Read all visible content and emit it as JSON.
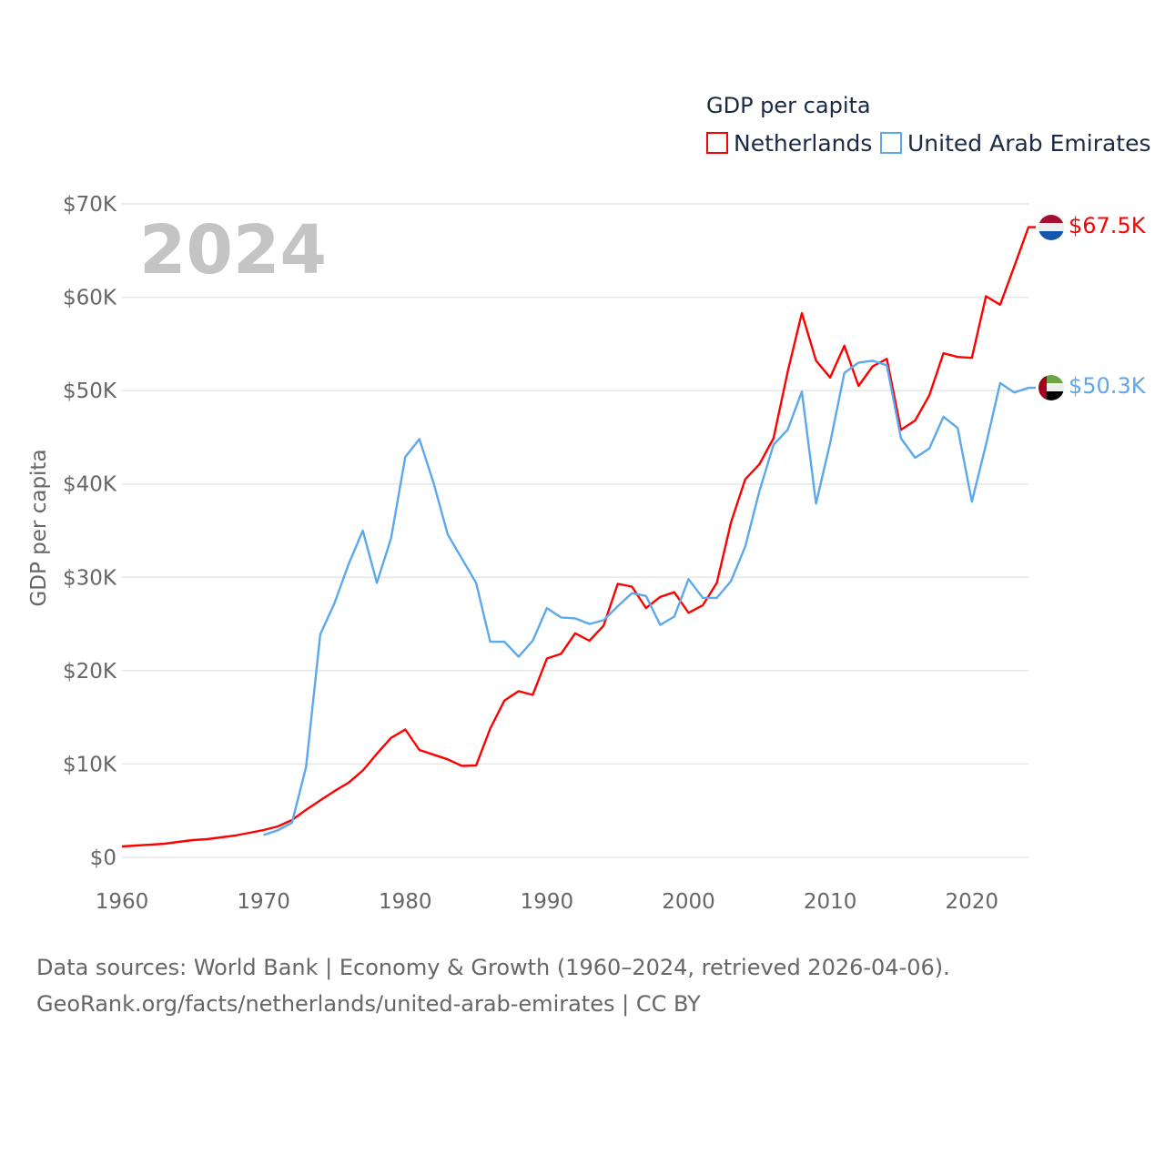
{
  "chart_data": {
    "type": "line",
    "title": "GDP per capita",
    "ylabel": "GDP per capita",
    "xlabel": "",
    "xlim": [
      1960,
      2024
    ],
    "ylim": [
      0,
      70000
    ],
    "x_ticks": [
      1960,
      1970,
      1980,
      1990,
      2000,
      2010,
      2020
    ],
    "x_tick_labels": [
      "1960",
      "1970",
      "1980",
      "1990",
      "2000",
      "2010",
      "2020"
    ],
    "y_ticks": [
      0,
      10000,
      20000,
      30000,
      40000,
      50000,
      60000,
      70000
    ],
    "y_tick_labels": [
      "$0",
      "$10K",
      "$20K",
      "$30K",
      "$40K",
      "$50K",
      "$60K",
      "$70K"
    ],
    "grid": true,
    "legend_position": "top-right",
    "year_annotation": "2024",
    "series": [
      {
        "name": "Netherlands",
        "color": "#ff0000",
        "end_label": "$67.5K",
        "flag": "netherlands-flag",
        "start_year": 1960,
        "values": [
          1170,
          1270,
          1360,
          1460,
          1660,
          1850,
          1950,
          2140,
          2340,
          2630,
          2920,
          3310,
          4000,
          5100,
          6100,
          7100,
          8000,
          9300,
          11100,
          12800,
          13700,
          11500,
          11000,
          10500,
          9800,
          9840,
          13800,
          16800,
          17800,
          17400,
          21300,
          21800,
          24000,
          23200,
          24800,
          29300,
          29000,
          26700,
          27900,
          28400,
          26200,
          27000,
          29400,
          35900,
          40500,
          42100,
          44900,
          52000,
          58300,
          53200,
          51400,
          54800,
          50500,
          52600,
          53400,
          45800,
          46800,
          49500,
          54000,
          53600,
          53500,
          60100,
          59200,
          63300,
          67500
        ]
      },
      {
        "name": "United Arab Emirates",
        "color": "#5ca8ec",
        "end_label": "$50.3K",
        "flag": "uae-flag",
        "start_year": 1970,
        "values": [
          2400,
          2900,
          3700,
          9700,
          23900,
          27200,
          31400,
          35000,
          29400,
          34200,
          42900,
          44800,
          40100,
          34600,
          32000,
          29400,
          23100,
          23100,
          21500,
          23200,
          26700,
          25700,
          25600,
          25000,
          25400,
          26900,
          28300,
          28000,
          24900,
          25800,
          29800,
          27800,
          27800,
          29600,
          33300,
          39200,
          44200,
          45800,
          49900,
          37900,
          44400,
          51900,
          53000,
          53200,
          52700,
          44900,
          42800,
          43800,
          47200,
          46000,
          38100,
          44200,
          50800,
          49800,
          50300
        ]
      }
    ]
  },
  "footer": {
    "line1": "Data sources: World Bank | Economy & Growth (1960–2024, retrieved 2026-04-06).",
    "line2": "GeoRank.org/facts/netherlands/united-arab-emirates | CC BY"
  }
}
